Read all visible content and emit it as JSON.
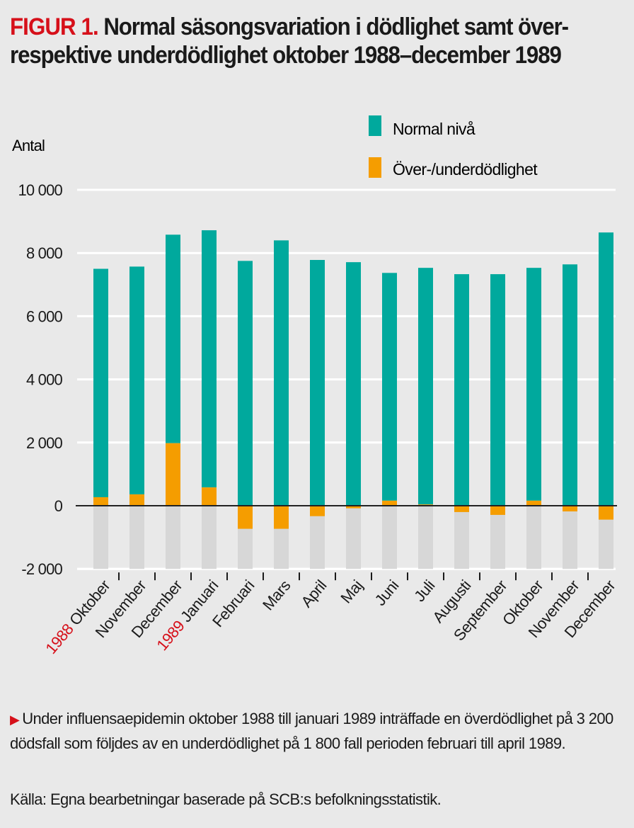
{
  "title": {
    "figure_label": "FIGUR 1.",
    "text": "Normal säsongsvariation i dödlighet samt över- respektive underdödlighet oktober 1988–december 1989"
  },
  "caption": "Under influensaepidemin oktober 1988 till januari 1989 inträffade en överdödlighet på 3 200 dödsfall som följdes av en underdödlighet på 1 800 fall perioden februari till april 1989.",
  "source": "Källa: Egna bearbetningar baserade på SCB:s befolkningsstatistik.",
  "colors": {
    "normal": "#00a99d",
    "excess": "#f59d00",
    "below_zero_bg": "#d7d7d7",
    "year_label": "#d6101a",
    "grid": "#ffffff",
    "zero_line": "#222222"
  },
  "chart_data": {
    "type": "bar",
    "stacked": true,
    "title": "Normal säsongsvariation i dödlighet samt över- respektive underdödlighet oktober 1988–december 1989",
    "ylabel": "Antal",
    "xlabel": "",
    "ylim": [
      -2000,
      10000
    ],
    "yticks": [
      -2000,
      0,
      2000,
      4000,
      6000,
      8000,
      10000
    ],
    "ytick_labels": [
      "-2 000",
      "0",
      "2 000",
      "4 000",
      "6 000",
      "8 000",
      "10 000"
    ],
    "grid": true,
    "legend_position": "top-right",
    "legend": [
      "Normal nivå",
      "Över-/underdödlighet"
    ],
    "categories": [
      "Oktober",
      "November",
      "December",
      "Januari",
      "Februari",
      "Mars",
      "April",
      "Maj",
      "Juni",
      "Juli",
      "Augusti",
      "September",
      "Oktober",
      "November",
      "December"
    ],
    "year_markers": [
      {
        "index": 0,
        "label": "1988"
      },
      {
        "index": 3,
        "label": "1989"
      }
    ],
    "series": [
      {
        "name": "Normal nivå",
        "values": [
          7500,
          7570,
          8580,
          8720,
          7750,
          8400,
          7780,
          7710,
          7370,
          7530,
          7330,
          7330,
          7530,
          7640,
          8650
        ]
      },
      {
        "name": "Över-/underdödlighet",
        "values": [
          270,
          360,
          1980,
          580,
          -730,
          -730,
          -330,
          -80,
          160,
          40,
          -200,
          -290,
          160,
          -180,
          -440
        ]
      }
    ]
  }
}
